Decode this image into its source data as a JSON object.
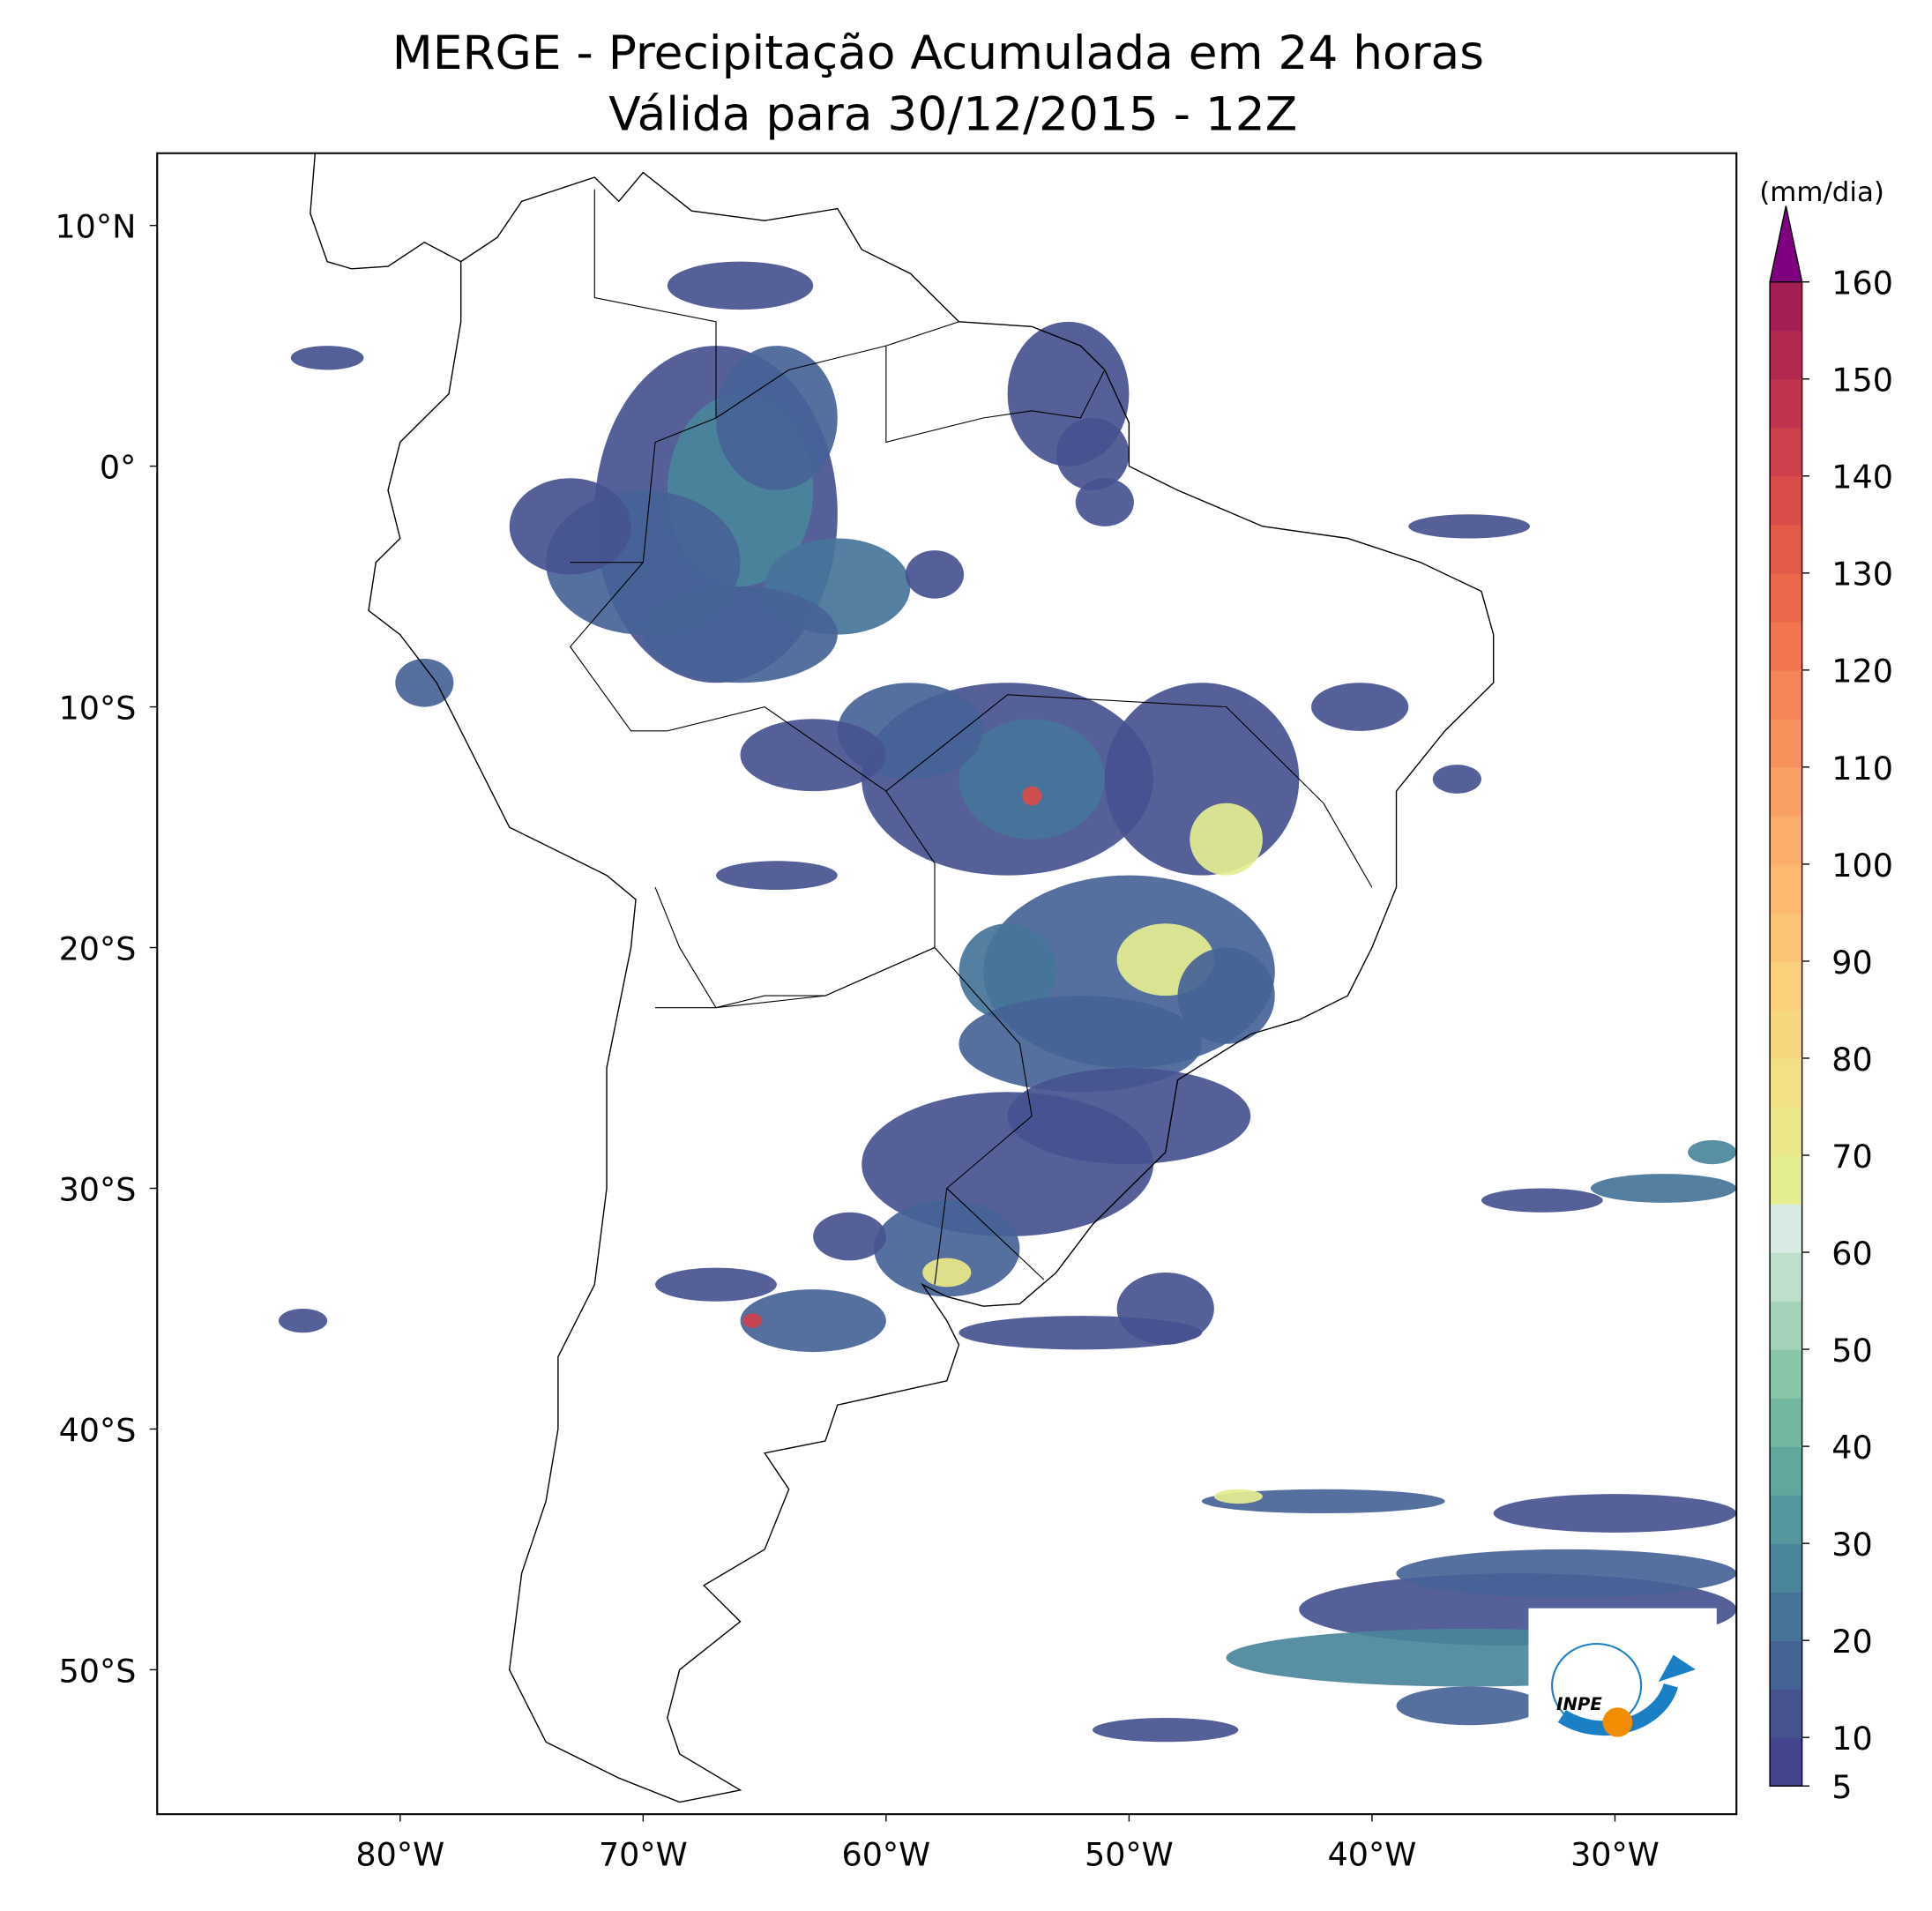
{
  "title": "MERGE - Precipitação Acumulada em 24 horas",
  "subtitle": "Válida para 30/12/2015 - 12Z",
  "map": {
    "xlim": [
      -90,
      -25
    ],
    "ylim": [
      -56,
      13
    ],
    "xticks": [
      {
        "value": -80,
        "label": "80°W"
      },
      {
        "value": -70,
        "label": "70°W"
      },
      {
        "value": -60,
        "label": "60°W"
      },
      {
        "value": -50,
        "label": "50°W"
      },
      {
        "value": -40,
        "label": "40°W"
      },
      {
        "value": -30,
        "label": "30°W"
      }
    ],
    "yticks": [
      {
        "value": 10,
        "label": "10°N"
      },
      {
        "value": 0,
        "label": "0°"
      },
      {
        "value": -10,
        "label": "10°S"
      },
      {
        "value": -20,
        "label": "20°S"
      },
      {
        "value": -30,
        "label": "30°S"
      },
      {
        "value": -40,
        "label": "40°S"
      },
      {
        "value": -50,
        "label": "50°S"
      }
    ]
  },
  "colorbar": {
    "label": "(mm/dia)",
    "lim": [
      5,
      160
    ],
    "ticks": [
      5,
      10,
      20,
      30,
      40,
      50,
      60,
      70,
      80,
      90,
      100,
      110,
      120,
      130,
      140,
      150,
      160
    ],
    "colors": [
      "#45458f",
      "#47538f",
      "#466396",
      "#467499",
      "#4b859b",
      "#54969c",
      "#62a79e",
      "#74b7a0",
      "#89c6a7",
      "#a3d2b8",
      "#bfdfcd",
      "#d8ebe3",
      "#e5ed91",
      "#ece889",
      "#f2e084",
      "#f7d77d",
      "#fad07a",
      "#fcc575",
      "#fdb970",
      "#fbad6b",
      "#f9a065",
      "#f7925c",
      "#f58456",
      "#f17650",
      "#ec684b",
      "#e45a49",
      "#da4c4a",
      "#ce404c",
      "#c1344f",
      "#b32a51",
      "#a41f54"
    ],
    "extend_color": "#800080"
  },
  "logo": {
    "text": "INPE"
  }
}
